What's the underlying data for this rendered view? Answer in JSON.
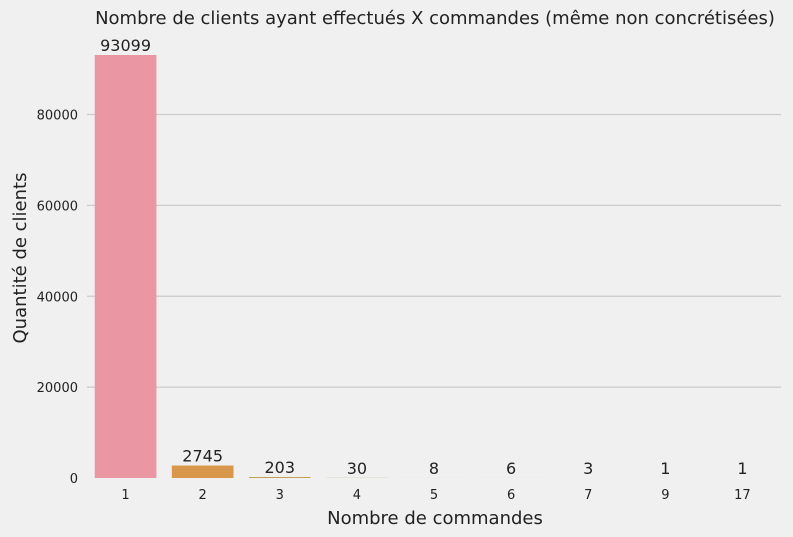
{
  "chart_data": {
    "type": "bar",
    "title": "Nombre de clients ayant effectués X commandes (même non concrétisées)",
    "xlabel": "Nombre de commandes",
    "ylabel": "Quantité de clients",
    "categories": [
      "1",
      "2",
      "3",
      "4",
      "5",
      "6",
      "7",
      "9",
      "17"
    ],
    "values": [
      93099,
      2745,
      203,
      30,
      8,
      6,
      3,
      1,
      1
    ],
    "data_labels": [
      "93099",
      "2745",
      "203",
      "30",
      "8",
      "6",
      "3",
      "1",
      "1"
    ],
    "ylim": [
      0,
      93099
    ],
    "yticks": [
      0,
      20000,
      40000,
      60000,
      80000
    ],
    "ytick_labels": [
      "0",
      "20000",
      "40000",
      "60000",
      "80000"
    ],
    "grid": "horizontal",
    "colors": [
      "#ea96a3",
      "#d8974b",
      "#bb9b4a",
      "#a3a049",
      "#7aa94a",
      "#4fb095",
      "#4eab9b",
      "#52a9ae",
      "#57a7bb"
    ]
  }
}
